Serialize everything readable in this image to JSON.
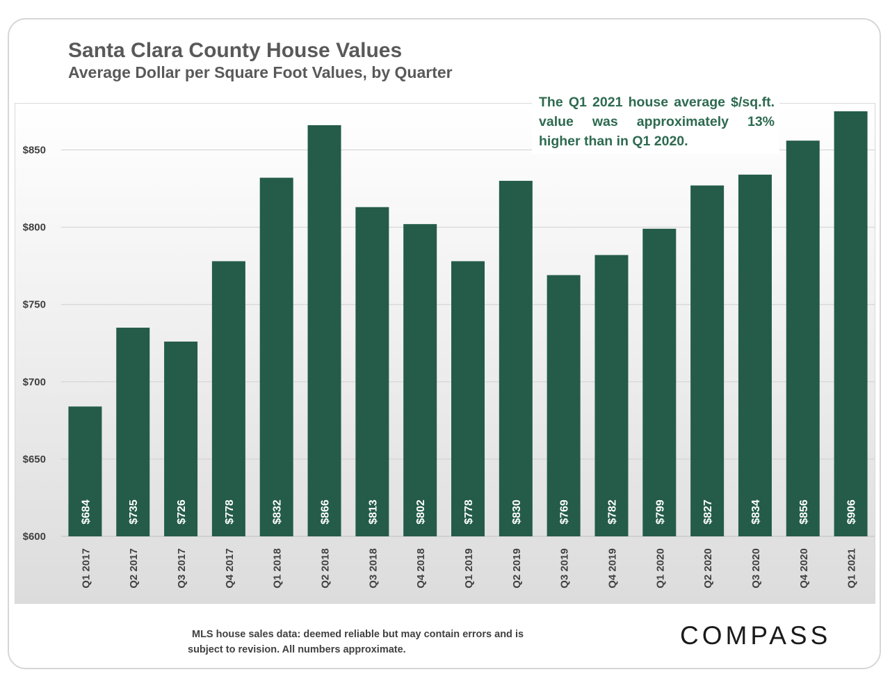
{
  "header": {
    "title": "Santa Clara County House Values",
    "subtitle": "Average Dollar per Square Foot Values, by Quarter"
  },
  "annotation": "The Q1 2021 house average $/sq.ft. value was approximately 13% higher than in Q1 2020.",
  "footer": {
    "note": "MLS house sales data:  deemed reliable but may contain errors and is subject to revision. All numbers approximate.",
    "logo": "COMPASS"
  },
  "colors": {
    "bar": "#245c49",
    "bar_label": "#ffffff",
    "title": "#595959",
    "annotation": "#2d6a4f",
    "axis_text": "#404040"
  },
  "chart_data": {
    "type": "bar",
    "title": "Santa Clara County House Values",
    "subtitle": "Average Dollar per Square Foot Values, by Quarter",
    "xlabel": "",
    "ylabel": "",
    "ylim": [
      600,
      870
    ],
    "yticks": [
      600,
      650,
      700,
      750,
      800,
      850
    ],
    "ytick_labels": [
      "$600",
      "$650",
      "$700",
      "$750",
      "$800",
      "$850"
    ],
    "categories": [
      "Q1 2017",
      "Q2 2017",
      "Q3 2017",
      "Q4 2017",
      "Q1 2018",
      "Q2 2018",
      "Q3 2018",
      "Q4 2018",
      "Q1 2019",
      "Q2 2019",
      "Q3 2019",
      "Q4 2019",
      "Q1 2020",
      "Q2 2020",
      "Q3 2020",
      "Q4 2020",
      "Q1 2021"
    ],
    "values": [
      684,
      735,
      726,
      778,
      832,
      866,
      813,
      802,
      778,
      830,
      769,
      782,
      799,
      827,
      834,
      856,
      906
    ],
    "data_labels": [
      "$684",
      "$735",
      "$726",
      "$778",
      "$832",
      "$866",
      "$813",
      "$802",
      "$778",
      "$830",
      "$769",
      "$782",
      "$799",
      "$827",
      "$834",
      "$856",
      "$906"
    ],
    "grid": true,
    "legend": "none"
  }
}
